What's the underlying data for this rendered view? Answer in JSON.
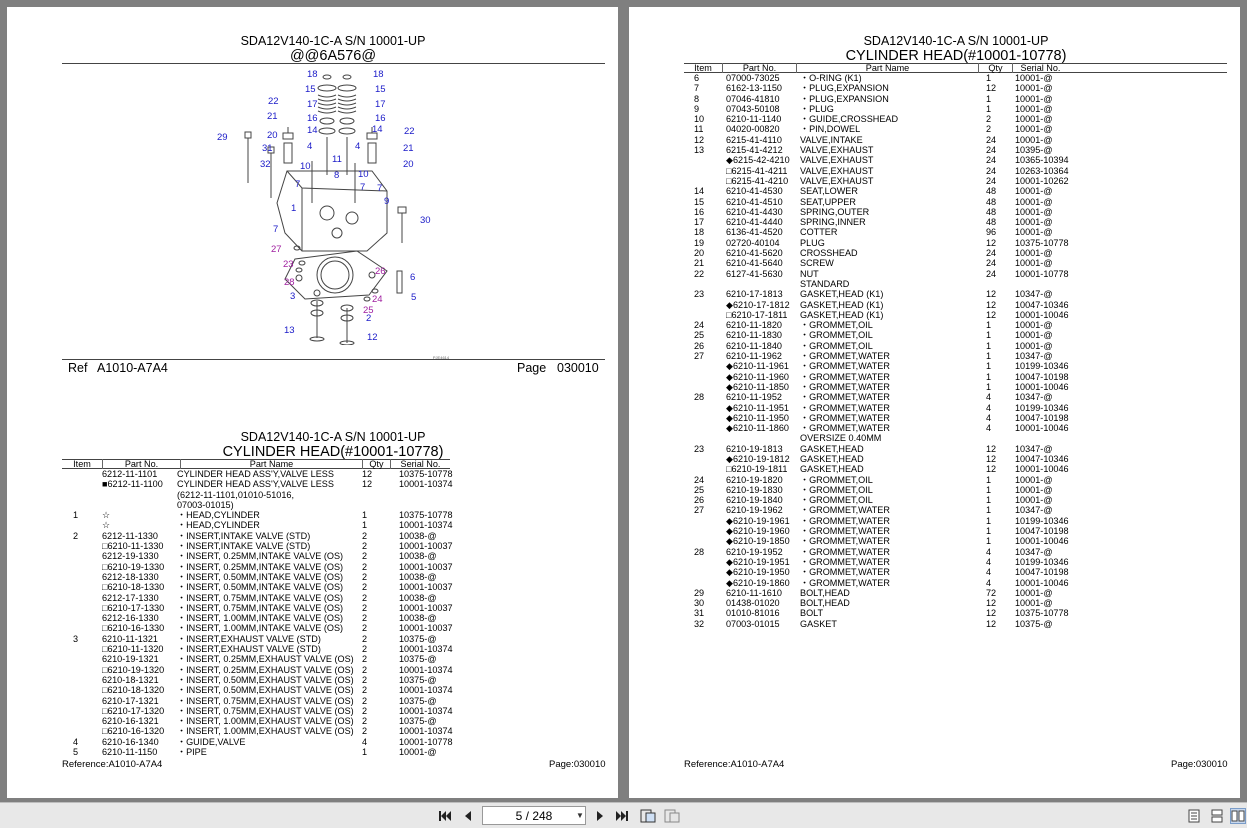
{
  "left_page": {
    "top_title": "SDA12V140-1C-A S/N 10001-UP",
    "top_subtitle": "@@6A576@",
    "diagram_code": "PJE4614",
    "callouts_blue": [
      "18",
      "18",
      "15",
      "15",
      "17",
      "17",
      "16",
      "16",
      "22",
      "22",
      "21",
      "21",
      "20",
      "20",
      "14",
      "14",
      "4",
      "4",
      "29",
      "31",
      "32",
      "10",
      "10",
      "11",
      "8",
      "7",
      "7",
      "7",
      "9",
      "1",
      "30",
      "7",
      "6",
      "5",
      "3",
      "2",
      "12",
      "13"
    ],
    "callouts_purple": [
      "27",
      "23",
      "28",
      "26",
      "24",
      "25"
    ],
    "ref_label": "Ref",
    "ref_value": "A1010-A7A4",
    "page_label": "Page",
    "page_value": "030010",
    "table_title": "SDA12V140-1C-A S/N 10001-UP",
    "table_subtitle": "CYLINDER HEAD(#10001-10778)",
    "headers": [
      "Item",
      "Part No.",
      "Part Name",
      "Qty",
      "Serial No."
    ],
    "rows": [
      [
        "",
        "6212-11-1101",
        "CYLINDER HEAD ASS'Y,VALVE LESS",
        "12",
        "10375-10778"
      ],
      [
        "",
        "■6212-11-1100",
        "CYLINDER HEAD ASS'Y,VALVE LESS",
        "12",
        "10001-10374"
      ],
      [
        "",
        "",
        "(6212-11-1101,01010-51016,",
        "",
        ""
      ],
      [
        "",
        "",
        "07003-01015)",
        "",
        ""
      ],
      [
        "1",
        "☆",
        "・HEAD,CYLINDER",
        "1",
        "10375-10778"
      ],
      [
        "",
        "☆",
        "・HEAD,CYLINDER",
        "1",
        "10001-10374"
      ],
      [
        "2",
        "6212-11-1330",
        "・INSERT,INTAKE VALVE (STD)",
        "2",
        "10038-@"
      ],
      [
        "",
        "□6210-11-1330",
        "・INSERT,INTAKE VALVE (STD)",
        "2",
        "10001-10037"
      ],
      [
        "",
        "6212-19-1330",
        "・INSERT, 0.25MM,INTAKE VALVE (OS)",
        "2",
        "10038-@"
      ],
      [
        "",
        "□6210-19-1330",
        "・INSERT, 0.25MM,INTAKE VALVE (OS)",
        "2",
        "10001-10037"
      ],
      [
        "",
        "6212-18-1330",
        "・INSERT, 0.50MM,INTAKE VALVE (OS)",
        "2",
        "10038-@"
      ],
      [
        "",
        "□6210-18-1330",
        "・INSERT, 0.50MM,INTAKE VALVE (OS)",
        "2",
        "10001-10037"
      ],
      [
        "",
        "6212-17-1330",
        "・INSERT, 0.75MM,INTAKE VALVE (OS)",
        "2",
        "10038-@"
      ],
      [
        "",
        "□6210-17-1330",
        "・INSERT, 0.75MM,INTAKE VALVE (OS)",
        "2",
        "10001-10037"
      ],
      [
        "",
        "6212-16-1330",
        "・INSERT, 1.00MM,INTAKE VALVE (OS)",
        "2",
        "10038-@"
      ],
      [
        "",
        "□6210-16-1330",
        "・INSERT, 1.00MM,INTAKE VALVE (OS)",
        "2",
        "10001-10037"
      ],
      [
        "3",
        "6210-11-1321",
        "・INSERT,EXHAUST VALVE (STD)",
        "2",
        "10375-@"
      ],
      [
        "",
        "□6210-11-1320",
        "・INSERT,EXHAUST VALVE (STD)",
        "2",
        "10001-10374"
      ],
      [
        "",
        "6210-19-1321",
        "・INSERT, 0.25MM,EXHAUST VALVE (OS)",
        "2",
        "10375-@"
      ],
      [
        "",
        "□6210-19-1320",
        "・INSERT, 0.25MM,EXHAUST VALVE (OS)",
        "2",
        "10001-10374"
      ],
      [
        "",
        "6210-18-1321",
        "・INSERT, 0.50MM,EXHAUST VALVE (OS)",
        "2",
        "10375-@"
      ],
      [
        "",
        "□6210-18-1320",
        "・INSERT, 0.50MM,EXHAUST VALVE (OS)",
        "2",
        "10001-10374"
      ],
      [
        "",
        "6210-17-1321",
        "・INSERT, 0.75MM,EXHAUST VALVE (OS)",
        "2",
        "10375-@"
      ],
      [
        "",
        "□6210-17-1320",
        "・INSERT, 0.75MM,EXHAUST VALVE (OS)",
        "2",
        "10001-10374"
      ],
      [
        "",
        "6210-16-1321",
        "・INSERT, 1.00MM,EXHAUST VALVE (OS)",
        "2",
        "10375-@"
      ],
      [
        "",
        "□6210-16-1320",
        "・INSERT, 1.00MM,EXHAUST VALVE (OS)",
        "2",
        "10001-10374"
      ],
      [
        "4",
        "6210-16-1340",
        "・GUIDE,VALVE",
        "4",
        "10001-10778"
      ],
      [
        "5",
        "6210-11-1150",
        "・PIPE",
        "1",
        "10001-@"
      ]
    ],
    "footer_reference": "Reference:A1010-A7A4",
    "footer_page": "Page:030010"
  },
  "right_page": {
    "table_title": "SDA12V140-1C-A S/N 10001-UP",
    "table_subtitle": "CYLINDER HEAD(#10001-10778)",
    "headers": [
      "Item",
      "Part No.",
      "Part Name",
      "Qty",
      "Serial No."
    ],
    "rows": [
      [
        "6",
        "07000-73025",
        "・O-RING (K1)",
        "1",
        "10001-@"
      ],
      [
        "7",
        "6162-13-1150",
        "・PLUG,EXPANSION",
        "12",
        "10001-@"
      ],
      [
        "8",
        "07046-41810",
        "・PLUG,EXPANSION",
        "1",
        "10001-@"
      ],
      [
        "9",
        "07043-50108",
        "・PLUG",
        "1",
        "10001-@"
      ],
      [
        "10",
        "6210-11-1140",
        "・GUIDE,CROSSHEAD",
        "2",
        "10001-@"
      ],
      [
        "11",
        "04020-00820",
        "・PIN,DOWEL",
        "2",
        "10001-@"
      ],
      [
        "12",
        "6215-41-4110",
        "VALVE,INTAKE",
        "24",
        "10001-@"
      ],
      [
        "13",
        "6215-41-4212",
        "VALVE,EXHAUST",
        "24",
        "10395-@"
      ],
      [
        "",
        "◆6215-42-4210",
        "VALVE,EXHAUST",
        "24",
        "10365-10394"
      ],
      [
        "",
        "□6215-41-4211",
        "VALVE,EXHAUST",
        "24",
        "10263-10364"
      ],
      [
        "",
        "□6215-41-4210",
        "VALVE,EXHAUST",
        "24",
        "10001-10262"
      ],
      [
        "14",
        "6210-41-4530",
        "SEAT,LOWER",
        "48",
        "10001-@"
      ],
      [
        "15",
        "6210-41-4510",
        "SEAT,UPPER",
        "48",
        "10001-@"
      ],
      [
        "16",
        "6210-41-4430",
        "SPRING,OUTER",
        "48",
        "10001-@"
      ],
      [
        "17",
        "6210-41-4440",
        "SPRING,INNER",
        "48",
        "10001-@"
      ],
      [
        "18",
        "6136-41-4520",
        "COTTER",
        "96",
        "10001-@"
      ],
      [
        "19",
        "02720-40104",
        "PLUG",
        "12",
        "10375-10778"
      ],
      [
        "20",
        "6210-41-5620",
        "CROSSHEAD",
        "24",
        "10001-@"
      ],
      [
        "21",
        "6210-41-5640",
        "SCREW",
        "24",
        "10001-@"
      ],
      [
        "22",
        "6127-41-5630",
        "NUT",
        "24",
        "10001-10778"
      ],
      [
        "",
        "",
        "STANDARD",
        "",
        ""
      ],
      [
        "23",
        "6210-17-1813",
        "GASKET,HEAD (K1)",
        "12",
        "10347-@"
      ],
      [
        "",
        "◆6210-17-1812",
        "GASKET,HEAD (K1)",
        "12",
        "10047-10346"
      ],
      [
        "",
        "□6210-17-1811",
        "GASKET,HEAD (K1)",
        "12",
        "10001-10046"
      ],
      [
        "24",
        "6210-11-1820",
        "・GROMMET,OIL",
        "1",
        "10001-@"
      ],
      [
        "25",
        "6210-11-1830",
        "・GROMMET,OIL",
        "1",
        "10001-@"
      ],
      [
        "26",
        "6210-11-1840",
        "・GROMMET,OIL",
        "1",
        "10001-@"
      ],
      [
        "27",
        "6210-11-1962",
        "・GROMMET,WATER",
        "1",
        "10347-@"
      ],
      [
        "",
        "◆6210-11-1961",
        "・GROMMET,WATER",
        "1",
        "10199-10346"
      ],
      [
        "",
        "◆6210-11-1960",
        "・GROMMET,WATER",
        "1",
        "10047-10198"
      ],
      [
        "",
        "◆6210-11-1850",
        "・GROMMET,WATER",
        "1",
        "10001-10046"
      ],
      [
        "28",
        "6210-11-1952",
        "・GROMMET,WATER",
        "4",
        "10347-@"
      ],
      [
        "",
        "◆6210-11-1951",
        "・GROMMET,WATER",
        "4",
        "10199-10346"
      ],
      [
        "",
        "◆6210-11-1950",
        "・GROMMET,WATER",
        "4",
        "10047-10198"
      ],
      [
        "",
        "◆6210-11-1860",
        "・GROMMET,WATER",
        "4",
        "10001-10046"
      ],
      [
        "",
        "",
        "OVERSIZE 0.40MM",
        "",
        ""
      ],
      [
        "23",
        "6210-19-1813",
        "GASKET,HEAD",
        "12",
        "10347-@"
      ],
      [
        "",
        "◆6210-19-1812",
        "GASKET,HEAD",
        "12",
        "10047-10346"
      ],
      [
        "",
        "□6210-19-1811",
        "GASKET,HEAD",
        "12",
        "10001-10046"
      ],
      [
        "24",
        "6210-19-1820",
        "・GROMMET,OIL",
        "1",
        "10001-@"
      ],
      [
        "25",
        "6210-19-1830",
        "・GROMMET,OIL",
        "1",
        "10001-@"
      ],
      [
        "26",
        "6210-19-1840",
        "・GROMMET,OIL",
        "1",
        "10001-@"
      ],
      [
        "27",
        "6210-19-1962",
        "・GROMMET,WATER",
        "1",
        "10347-@"
      ],
      [
        "",
        "◆6210-19-1961",
        "・GROMMET,WATER",
        "1",
        "10199-10346"
      ],
      [
        "",
        "◆6210-19-1960",
        "・GROMMET,WATER",
        "1",
        "10047-10198"
      ],
      [
        "",
        "◆6210-19-1850",
        "・GROMMET,WATER",
        "1",
        "10001-10046"
      ],
      [
        "28",
        "6210-19-1952",
        "・GROMMET,WATER",
        "4",
        "10347-@"
      ],
      [
        "",
        "◆6210-19-1951",
        "・GROMMET,WATER",
        "4",
        "10199-10346"
      ],
      [
        "",
        "◆6210-19-1950",
        "・GROMMET,WATER",
        "4",
        "10047-10198"
      ],
      [
        "",
        "◆6210-19-1860",
        "・GROMMET,WATER",
        "4",
        "10001-10046"
      ],
      [
        "29",
        "6210-11-1610",
        "BOLT,HEAD",
        "72",
        "10001-@"
      ],
      [
        "30",
        "01438-01020",
        "BOLT,HEAD",
        "12",
        "10001-@"
      ],
      [
        "31",
        "01010-81016",
        "BOLT",
        "12",
        "10375-10778"
      ],
      [
        "32",
        "07003-01015",
        "GASKET",
        "12",
        "10375-@"
      ]
    ],
    "footer_reference": "Reference:A1010-A7A4",
    "footer_page": "Page:030010"
  },
  "toolbar": {
    "page_indicator": "5 / 248",
    "icons": [
      "first-page-icon",
      "prev-page-icon",
      "next-page-icon",
      "last-page-icon",
      "fit-page-icon",
      "fit-width-icon",
      "single-page-view-icon",
      "continuous-view-icon",
      "two-page-view-icon"
    ]
  }
}
